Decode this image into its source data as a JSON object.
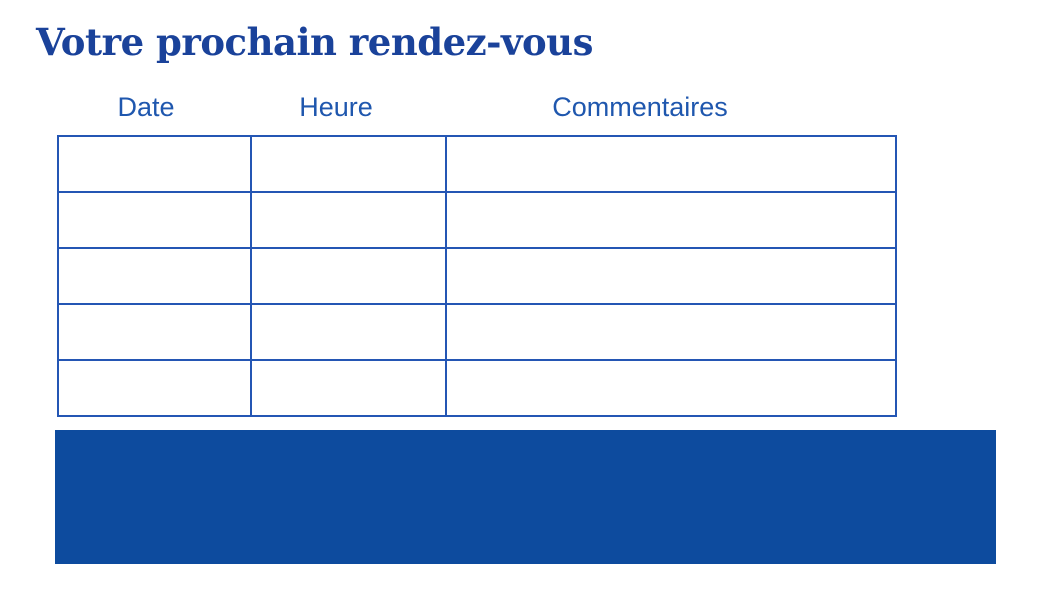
{
  "title": {
    "text": "Votre prochain rendez-vous"
  },
  "table": {
    "headers": [
      {
        "label": "Date"
      },
      {
        "label": "Heure"
      },
      {
        "label": "Commentaires"
      }
    ],
    "rows": [
      [
        "",
        "",
        ""
      ],
      [
        "",
        "",
        ""
      ],
      [
        "",
        "",
        ""
      ],
      [
        "",
        "",
        ""
      ],
      [
        "",
        "",
        ""
      ]
    ]
  },
  "banner": {
    "text": ""
  },
  "colors": {
    "background": "#ffffff",
    "title": "#1a429a",
    "header_text": "#1f57ae",
    "table_border": "#2456b4",
    "banner_fill": "#0d4b9e"
  }
}
